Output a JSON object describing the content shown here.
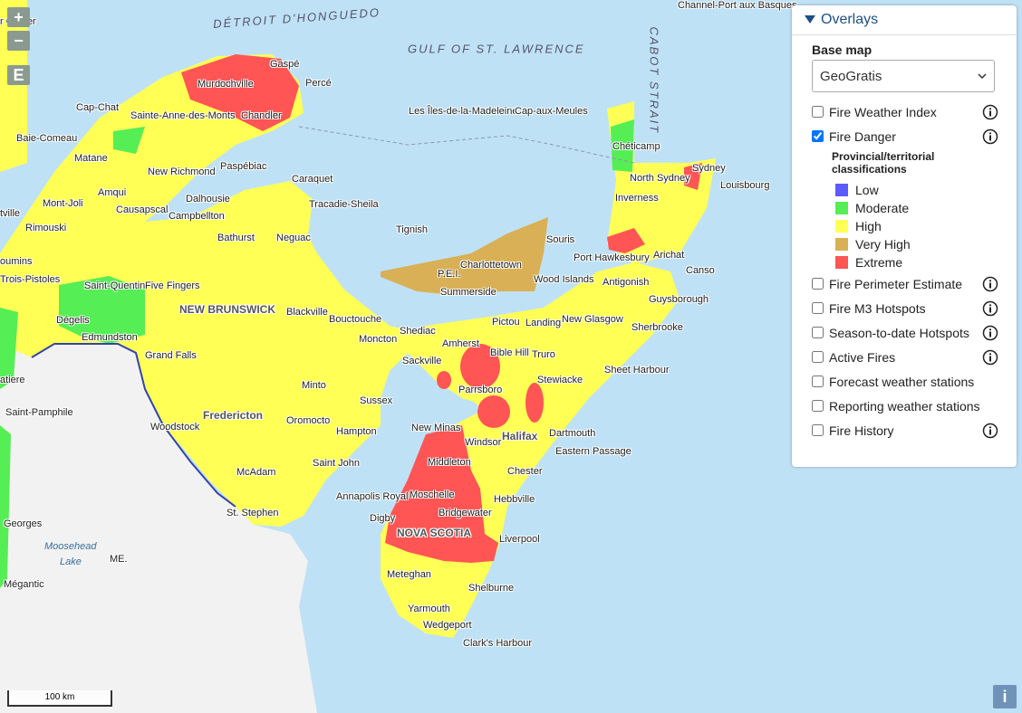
{
  "controls": {
    "zoom_in": "+",
    "zoom_out": "−",
    "extent": "E",
    "info": "i"
  },
  "scale_bar": "100 km",
  "map_labels": [
    "DÉTROIT D'HONGUEDO",
    "GULF OF ST. LAWRENCE",
    "CABOT STRAIT",
    "Channel-Port aux Basques",
    "r Cartier",
    "Gaspé",
    "Murdochville",
    "Percé",
    "Cap-Chat",
    "Sainte-Anne-des-Monts",
    "Chandler",
    "Les Îles-de-la-Madeleine",
    "Cap-aux-Meules",
    "Baie-Comeau",
    "Chéticamp",
    "Matane",
    "Paspébiac",
    "New Richmond",
    "Sydney",
    "North Sydney",
    "Caraquet",
    "Louisbourg",
    "Amqui",
    "Dalhousie",
    "Inverness",
    "Mont-Joli",
    "Causapscal",
    "Tracadie-Sheila",
    "Campbellton",
    "tville",
    "Rimouski",
    "Tignish",
    "Bathurst",
    "Neguac",
    "Souris",
    "Port Hawkesbury",
    "Arichat",
    "Charlottetown",
    "oumins",
    "P.E.I.",
    "Canso",
    "Trois-Pistoles",
    "Saint-Quentin",
    "Five Fingers",
    "Wood Islands",
    "Antigonish",
    "Summerside",
    "Guysborough",
    "NEW BRUNSWICK",
    "Blackville",
    "Dégelis",
    "Bouctouche",
    "Pictou",
    "Landing",
    "New Glasgow",
    "Edmundston",
    "Shediac",
    "Moncton",
    "Sherbrooke",
    "Amherst",
    "Grand Falls",
    "Sackville",
    "Bible Hill",
    "Truro",
    "Sheet Harbour",
    "Stewiacke",
    "atiere",
    "Minto",
    "Parrsboro",
    "Sussex",
    "Saint-Pamphile",
    "Fredericton",
    "Oromocto",
    "Woodstock",
    "New Minas",
    "Dartmouth",
    "Hampton",
    "Halifax",
    "Windsor",
    "Eastern Passage",
    "Middleton",
    "Saint John",
    "Chester",
    "McAdam",
    "Annapolis Royal",
    "Moschelle",
    "Hebbville",
    "St. Stephen",
    "Bridgewater",
    "Digby",
    "Georges",
    "NOVA SCOTIA",
    "Liverpool",
    "Moosehead",
    "ME.",
    "Lake",
    "Meteghan",
    "Mégantic",
    "Shelburne",
    "Yarmouth",
    "Wedgeport",
    "Clark's Harbour"
  ],
  "panel": {
    "title": "Overlays",
    "base_map_label": "Base map",
    "base_map_value": "GeoGratis",
    "layers": [
      {
        "label": "Fire Weather Index",
        "checked": false,
        "info": true
      },
      {
        "label": "Fire Danger",
        "checked": true,
        "info": true,
        "legend": {
          "title": "Provincial/territorial classifications",
          "items": [
            {
              "label": "Low",
              "color": "#5a5aff"
            },
            {
              "label": "Moderate",
              "color": "#55ee55"
            },
            {
              "label": "High",
              "color": "#ffff55"
            },
            {
              "label": "Very High",
              "color": "#d9b055"
            },
            {
              "label": "Extreme",
              "color": "#ff5555"
            }
          ]
        }
      },
      {
        "label": "Fire Perimeter Estimate",
        "checked": false,
        "info": true
      },
      {
        "label": "Fire M3 Hotspots",
        "checked": false,
        "info": true
      },
      {
        "label": "Season-to-date Hotspots",
        "checked": false,
        "info": true
      },
      {
        "label": "Active Fires",
        "checked": false,
        "info": true
      },
      {
        "label": "Forecast weather stations",
        "checked": false,
        "info": false
      },
      {
        "label": "Reporting weather stations",
        "checked": false,
        "info": false
      },
      {
        "label": "Fire History",
        "checked": false,
        "info": true
      }
    ]
  }
}
